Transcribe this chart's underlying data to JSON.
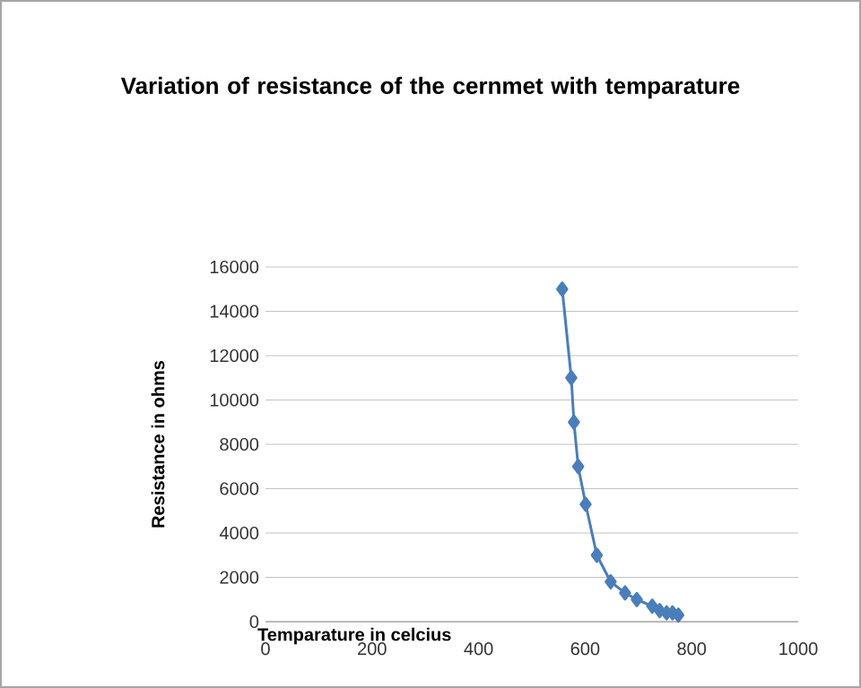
{
  "chart_data": {
    "type": "line",
    "title": "Variation of resistance of the cernmet with temparature",
    "xlabel": "Temparature in celcius",
    "ylabel": "Resistance in ohms",
    "x": [
      557,
      574,
      579,
      587,
      601,
      622,
      648,
      675,
      697,
      726,
      740,
      753,
      764,
      775
    ],
    "series": [
      {
        "color": "#4a7ebb",
        "values": [
          15000,
          11000,
          9000,
          7000,
          5300,
          3000,
          1800,
          1300,
          1000,
          700,
          500,
          400,
          400,
          300
        ]
      }
    ],
    "xlim": [
      0,
      1000
    ],
    "xticks": [
      0,
      200,
      400,
      600,
      800,
      1000
    ],
    "ylim": [
      0,
      16000
    ],
    "yticks": [
      0,
      2000,
      4000,
      6000,
      8000,
      10000,
      12000,
      14000,
      16000
    ],
    "grid": "y",
    "marker": "diamond",
    "line_style": "solid"
  }
}
